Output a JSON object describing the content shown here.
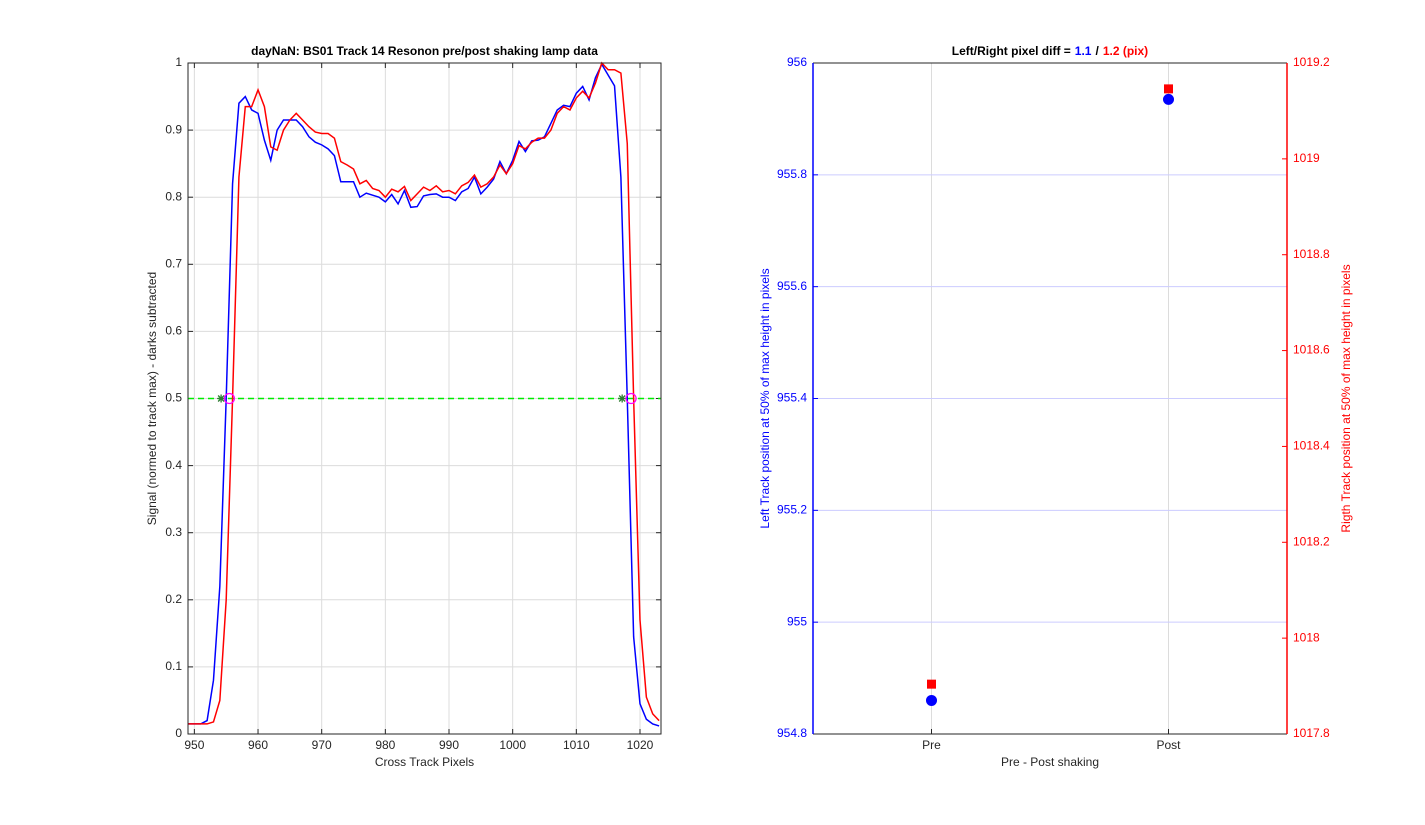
{
  "chart_data": [
    {
      "type": "line",
      "title": "dayNaN: BS01  Track 14 Resonon pre/post shaking lamp data",
      "xlabel": "Cross Track Pixels",
      "ylabel": "Signal (normed to track max) - darks subtracted",
      "x": [
        949,
        950,
        951,
        952,
        953,
        954,
        955,
        956,
        957,
        958,
        959,
        960,
        961,
        962,
        963,
        964,
        965,
        966,
        967,
        968,
        969,
        970,
        971,
        972,
        973,
        974,
        975,
        976,
        977,
        978,
        979,
        980,
        981,
        982,
        983,
        984,
        985,
        986,
        987,
        988,
        989,
        990,
        991,
        992,
        993,
        994,
        995,
        996,
        997,
        998,
        999,
        1000,
        1001,
        1002,
        1003,
        1004,
        1005,
        1006,
        1007,
        1008,
        1009,
        1010,
        1011,
        1012,
        1013,
        1014,
        1015,
        1016,
        1017,
        1018,
        1019,
        1020,
        1021,
        1022,
        1023
      ],
      "series": [
        {
          "color": "#0000ff",
          "values": [
            0.015,
            0.015,
            0.015,
            0.02,
            0.08,
            0.22,
            0.5,
            0.82,
            0.94,
            0.95,
            0.93,
            0.925,
            0.885,
            0.855,
            0.9,
            0.915,
            0.915,
            0.915,
            0.905,
            0.89,
            0.882,
            0.878,
            0.872,
            0.862,
            0.823,
            0.823,
            0.823,
            0.8,
            0.806,
            0.803,
            0.8,
            0.793,
            0.804,
            0.79,
            0.81,
            0.785,
            0.786,
            0.802,
            0.804,
            0.805,
            0.8,
            0.8,
            0.795,
            0.808,
            0.813,
            0.83,
            0.805,
            0.815,
            0.827,
            0.853,
            0.835,
            0.855,
            0.883,
            0.868,
            0.884,
            0.885,
            0.89,
            0.91,
            0.93,
            0.937,
            0.935,
            0.955,
            0.965,
            0.945,
            0.978,
            0.998,
            0.982,
            0.966,
            0.83,
            0.5,
            0.145,
            0.045,
            0.022,
            0.015,
            0.012
          ]
        },
        {
          "color": "#ff0000",
          "values": [
            0.015,
            0.015,
            0.015,
            0.015,
            0.018,
            0.05,
            0.2,
            0.5,
            0.83,
            0.935,
            0.935,
            0.96,
            0.935,
            0.875,
            0.87,
            0.9,
            0.915,
            0.925,
            0.915,
            0.905,
            0.897,
            0.895,
            0.895,
            0.888,
            0.853,
            0.848,
            0.842,
            0.82,
            0.825,
            0.813,
            0.81,
            0.8,
            0.812,
            0.808,
            0.816,
            0.795,
            0.805,
            0.815,
            0.81,
            0.817,
            0.808,
            0.81,
            0.805,
            0.817,
            0.822,
            0.833,
            0.815,
            0.82,
            0.83,
            0.848,
            0.835,
            0.85,
            0.877,
            0.872,
            0.882,
            0.888,
            0.888,
            0.9,
            0.925,
            0.935,
            0.93,
            0.948,
            0.958,
            0.948,
            0.97,
            1.0,
            0.99,
            0.99,
            0.985,
            0.88,
            0.5,
            0.17,
            0.055,
            0.03,
            0.02
          ]
        }
      ],
      "hline": {
        "value": 0.5,
        "color": "#00ee00"
      },
      "markers": [
        {
          "marker": "star",
          "color": "#2e7d32",
          "x": [
            954.2,
            1017.2
          ],
          "y": [
            0.5,
            0.5
          ]
        },
        {
          "marker": "circle",
          "color": "#ff00ff",
          "x": [
            955.5,
            1018.6
          ],
          "y": [
            0.5,
            0.5
          ]
        }
      ],
      "xlim": [
        949,
        1023.3
      ],
      "ylim": [
        0,
        1
      ],
      "xticks": [
        950,
        960,
        970,
        980,
        990,
        1000,
        1010,
        1020
      ],
      "yticks": [
        0,
        0.1,
        0.2,
        0.3,
        0.4,
        0.5,
        0.6,
        0.7,
        0.8,
        0.9,
        1
      ],
      "grid": true
    },
    {
      "type": "scatter",
      "title_parts": [
        "Left/Right pixel diff =",
        "1.1",
        "/",
        "1.2 (pix)"
      ],
      "xlabel": "Pre - Post shaking",
      "ylabel": "Left Track position at 50% of max height in pixels",
      "y2label": "Rigth Track position at 50% of max height in pixels",
      "categories": [
        "Pre",
        "Post"
      ],
      "series": [
        {
          "color": "#0000ff",
          "marker": "circle",
          "values": [
            954.86,
            955.935
          ]
        },
        {
          "color": "#ff0000",
          "marker": "square",
          "axis": "y2",
          "values": [
            1017.904,
            1019.146
          ]
        }
      ],
      "ylim": [
        954.8,
        956
      ],
      "yticks": [
        954.8,
        955,
        955.2,
        955.4,
        955.6,
        955.8,
        956
      ],
      "y2lim": [
        1017.8,
        1019.2
      ],
      "y2ticks": [
        1017.8,
        1018,
        1018.2,
        1018.4,
        1018.6,
        1018.8,
        1019,
        1019.2
      ],
      "grid": true
    }
  ]
}
